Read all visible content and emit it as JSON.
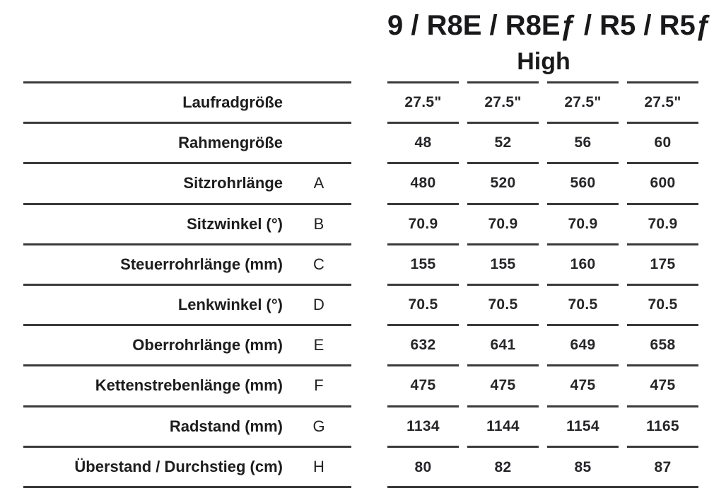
{
  "header": {
    "title": "9 / R8E / R8Eƒ / R5 / R5ƒ",
    "subtitle": "High"
  },
  "table": {
    "rows": [
      {
        "label": "Laufradgröße",
        "letter": "",
        "values": [
          "27.5\"",
          "27.5\"",
          "27.5\"",
          "27.5\""
        ]
      },
      {
        "label": "Rahmengröße",
        "letter": "",
        "values": [
          "48",
          "52",
          "56",
          "60"
        ]
      },
      {
        "label": "Sitzrohrlänge",
        "letter": "A",
        "values": [
          "480",
          "520",
          "560",
          "600"
        ]
      },
      {
        "label": "Sitzwinkel (°)",
        "letter": "B",
        "values": [
          "70.9",
          "70.9",
          "70.9",
          "70.9"
        ]
      },
      {
        "label": "Steuerrohrlänge (mm)",
        "letter": "C",
        "values": [
          "155",
          "155",
          "160",
          "175"
        ]
      },
      {
        "label": "Lenkwinkel (°)",
        "letter": "D",
        "values": [
          "70.5",
          "70.5",
          "70.5",
          "70.5"
        ]
      },
      {
        "label": "Oberrohrlänge (mm)",
        "letter": "E",
        "values": [
          "632",
          "641",
          "649",
          "658"
        ]
      },
      {
        "label": "Kettenstrebenlänge (mm)",
        "letter": "F",
        "values": [
          "475",
          "475",
          "475",
          "475"
        ]
      },
      {
        "label": "Radstand (mm)",
        "letter": "G",
        "values": [
          "1134",
          "1144",
          "1154",
          "1165"
        ]
      },
      {
        "label": "Überstand / Durchstieg (cm)",
        "letter": "H",
        "values": [
          "80",
          "82",
          "85",
          "87"
        ]
      }
    ]
  },
  "colors": {
    "rule": "#3a3a3a",
    "text": "#1d1d1f",
    "background": "#ffffff"
  }
}
